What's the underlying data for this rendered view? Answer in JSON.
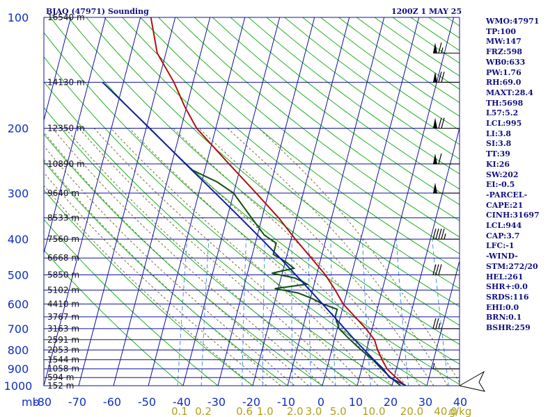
{
  "header": {
    "station": "BJAQ (47971) Sounding",
    "time": "1200Z  1 MAY 25"
  },
  "indices": [
    "WMO:47971",
    "TP:100",
    "MW:147",
    "FRZ:598",
    "WB0:633",
    "PW:1.76",
    "RH:69.0",
    "MAXT:28.4",
    "TH:5698",
    "L57:5.2",
    "LCL:995",
    "LI:3.8",
    "SI:3.8",
    "TT:39",
    "KI:26",
    "SW:202",
    "EI:-0.5",
    "-PARCEL-",
    "CAPE:21",
    "CINH:31697",
    "LCL:944",
    "CAP:3.7",
    "LFC:-1",
    "-WIND-",
    "STM:272/20",
    "HEL:261",
    "SHR+:0.0",
    "SRDS:116",
    "EHI:0.0",
    "BRN:0.1",
    "BSHR:259"
  ],
  "colors": {
    "grid": "#1010a0",
    "dry_adiabat": "#20b020",
    "moist_adiabat": "#707030",
    "mixing_ratio": "#4090e0",
    "temperature": "#b01010",
    "dewpoint": "#105010",
    "parcel": "#1020a0",
    "wetbulb": "#40a0e0"
  },
  "chart_data": {
    "type": "skew-t",
    "xlabel": "",
    "ylabel": "mb",
    "pressure_levels": [
      1000,
      900,
      800,
      700,
      600,
      500,
      400,
      300,
      200,
      100
    ],
    "pressure_labels": [
      "1000",
      "900",
      "800",
      "700",
      "600",
      "500",
      "400",
      "300",
      "200",
      "100"
    ],
    "y_unit_label": "mb",
    "height_labels": [
      {
        "p": 1000,
        "text": "152 m"
      },
      {
        "p": 950,
        "text": "594 m"
      },
      {
        "p": 900,
        "text": "1058 m"
      },
      {
        "p": 850,
        "text": "1544 m"
      },
      {
        "p": 800,
        "text": "2053 m"
      },
      {
        "p": 750,
        "text": "2591 m"
      },
      {
        "p": 700,
        "text": "3163 m"
      },
      {
        "p": 650,
        "text": "3767 m"
      },
      {
        "p": 600,
        "text": "4410 m"
      },
      {
        "p": 550,
        "text": "5102 m"
      },
      {
        "p": 500,
        "text": "5850 m"
      },
      {
        "p": 450,
        "text": "6668 m"
      },
      {
        "p": 400,
        "text": "7560 m"
      },
      {
        "p": 350,
        "text": "8533 m"
      },
      {
        "p": 300,
        "text": "9640 m"
      },
      {
        "p": 250,
        "text": "10890 m"
      },
      {
        "p": 200,
        "text": "12350 m"
      },
      {
        "p": 150,
        "text": "14130 m"
      },
      {
        "p": 100,
        "text": "16540 m"
      }
    ],
    "temperature_ticks": [
      "-80",
      "-70",
      "-60",
      "-50",
      "-40",
      "-30",
      "-20",
      "-10",
      "0",
      "10",
      "20",
      "30",
      "40"
    ],
    "temperature_values": [
      -80,
      -70,
      -60,
      -50,
      -40,
      -30,
      -20,
      -10,
      0,
      10,
      20,
      30,
      40
    ],
    "mixing_ratio_ticks": [
      "0.1",
      "0.2",
      "0.6",
      "1.0",
      "2.0",
      "3.0",
      "5.0",
      "10.0",
      "20.0",
      "40.0"
    ],
    "mixing_ratio_values": [
      0.1,
      0.2,
      0.6,
      1.0,
      2.0,
      3.0,
      5.0,
      10.0,
      20.0,
      40.0
    ],
    "mixing_ratio_unit": "g/kg",
    "series": [
      {
        "name": "Temperature",
        "points": [
          [
            1000,
            23.8
          ],
          [
            950,
            20.5
          ],
          [
            900,
            17.3
          ],
          [
            850,
            15.2
          ],
          [
            800,
            13.2
          ],
          [
            750,
            11.5
          ],
          [
            700,
            8.2
          ],
          [
            650,
            4.2
          ],
          [
            600,
            -0.2
          ],
          [
            550,
            -3.5
          ],
          [
            500,
            -7.5
          ],
          [
            450,
            -12.8
          ],
          [
            400,
            -18.8
          ],
          [
            350,
            -25.2
          ],
          [
            300,
            -33.5
          ],
          [
            250,
            -43.5
          ],
          [
            200,
            -55.5
          ],
          [
            175,
            -60.5
          ],
          [
            150,
            -65.5
          ],
          [
            125,
            -72.5
          ],
          [
            100,
            -77
          ]
        ]
      },
      {
        "name": "Dewpoint",
        "points": [
          [
            1000,
            22.5
          ],
          [
            950,
            19.0
          ],
          [
            900,
            15.7
          ],
          [
            850,
            12.5
          ],
          [
            800,
            8.5
          ],
          [
            750,
            4.5
          ],
          [
            700,
            0.5
          ],
          [
            650,
            -1.5
          ],
          [
            620,
            -1.5
          ],
          [
            600,
            -6
          ],
          [
            580,
            -9.5
          ],
          [
            560,
            -14
          ],
          [
            545,
            -21
          ],
          [
            530,
            -12
          ],
          [
            510,
            -16
          ],
          [
            495,
            -23
          ],
          [
            480,
            -17
          ],
          [
            460,
            -20
          ],
          [
            440,
            -24
          ],
          [
            410,
            -24
          ],
          [
            390,
            -28
          ],
          [
            350,
            -33
          ],
          [
            300,
            -40
          ],
          [
            280,
            -45.5
          ],
          [
            260,
            -53.5
          ]
        ]
      },
      {
        "name": "Parcel",
        "points": [
          [
            1000,
            24
          ],
          [
            950,
            18.7
          ],
          [
            900,
            16.2
          ],
          [
            850,
            12.8
          ],
          [
            800,
            9.4
          ],
          [
            750,
            5.8
          ],
          [
            700,
            2.1
          ],
          [
            650,
            -1.8
          ],
          [
            600,
            -6.1
          ],
          [
            550,
            -10.8
          ],
          [
            500,
            -16.0
          ],
          [
            450,
            -21.8
          ],
          [
            400,
            -28.5
          ],
          [
            350,
            -36.2
          ],
          [
            300,
            -45.2
          ],
          [
            250,
            -56
          ],
          [
            200,
            -69
          ],
          [
            150,
            -86
          ]
        ]
      }
    ],
    "wind_barbs": [
      {
        "p": 1000,
        "dir": 300,
        "spd": 0
      },
      {
        "p": 900,
        "dir": 270,
        "spd": 5
      },
      {
        "p": 700,
        "dir": 265,
        "spd": 25
      },
      {
        "p": 500,
        "dir": 265,
        "spd": 30
      },
      {
        "p": 400,
        "dir": 270,
        "spd": 45
      },
      {
        "p": 300,
        "dir": 270,
        "spd": 50
      },
      {
        "p": 250,
        "dir": 270,
        "spd": 60
      },
      {
        "p": 200,
        "dir": 270,
        "spd": 70
      },
      {
        "p": 150,
        "dir": 270,
        "spd": 70
      },
      {
        "p": 125,
        "dir": 270,
        "spd": 65
      }
    ],
    "ylim": [
      1000,
      100
    ],
    "xlim": [
      -80,
      40
    ]
  }
}
